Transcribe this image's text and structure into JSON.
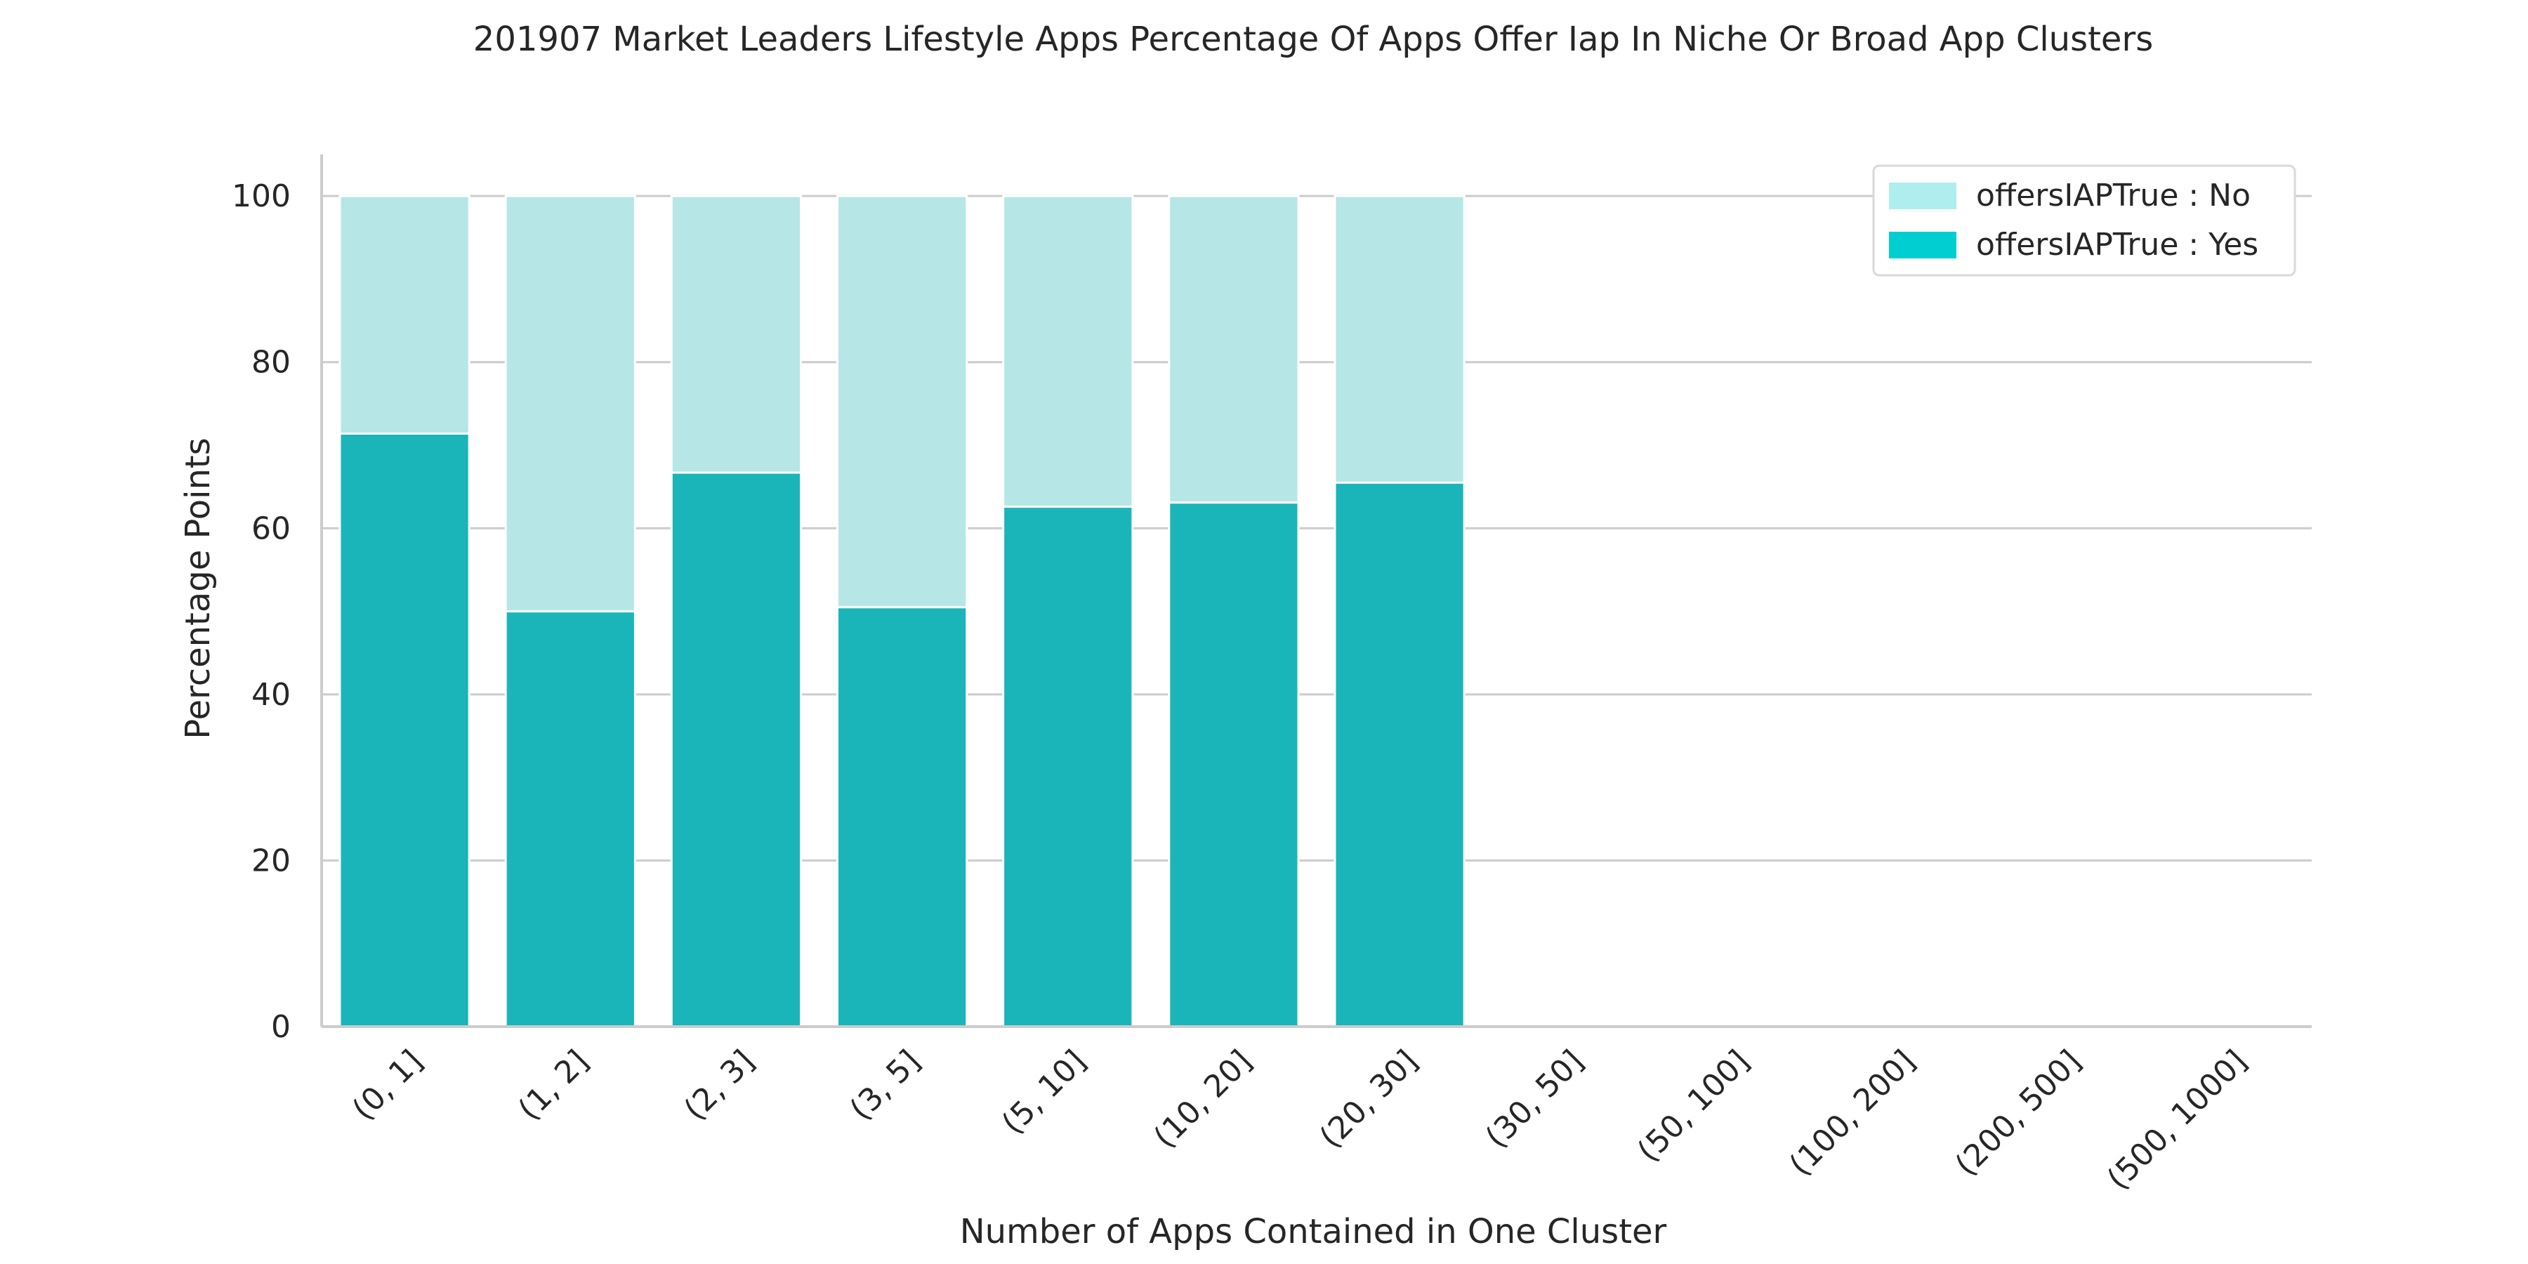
{
  "chart_data": {
    "type": "bar",
    "stacked": true,
    "title": "201907 Market Leaders Lifestyle Apps Percentage Of Apps Offer Iap In Niche Or Broad App Clusters",
    "xlabel": "Number of Apps Contained in One Cluster",
    "ylabel": "Percentage Points",
    "ylim": [
      0,
      105
    ],
    "yticks": [
      0,
      20,
      40,
      60,
      80,
      100
    ],
    "grid": "horizontal",
    "legend_position": "top-right",
    "categories": [
      "(0, 1]",
      "(1, 2]",
      "(2, 3]",
      "(3, 5]",
      "(5, 10]",
      "(10, 20]",
      "(20, 30]",
      "(30, 50]",
      "(50, 100]",
      "(100, 200]",
      "(200, 500]",
      "(500, 1000]"
    ],
    "series": [
      {
        "name": "offersIAPTrue : Yes",
        "color": "#1ab5b8",
        "legend_color": "#00ced1",
        "values": [
          71.4,
          50.0,
          66.7,
          50.5,
          62.6,
          63.1,
          65.5,
          null,
          null,
          null,
          null,
          null
        ]
      },
      {
        "name": "offersIAPTrue : No",
        "color": "#b6e6e6",
        "legend_color": "#afeeee",
        "values": [
          28.6,
          50.0,
          33.3,
          49.5,
          37.4,
          36.9,
          34.5,
          null,
          null,
          null,
          null,
          null
        ]
      }
    ],
    "legend_order": [
      "offersIAPTrue : No",
      "offersIAPTrue : Yes"
    ]
  }
}
